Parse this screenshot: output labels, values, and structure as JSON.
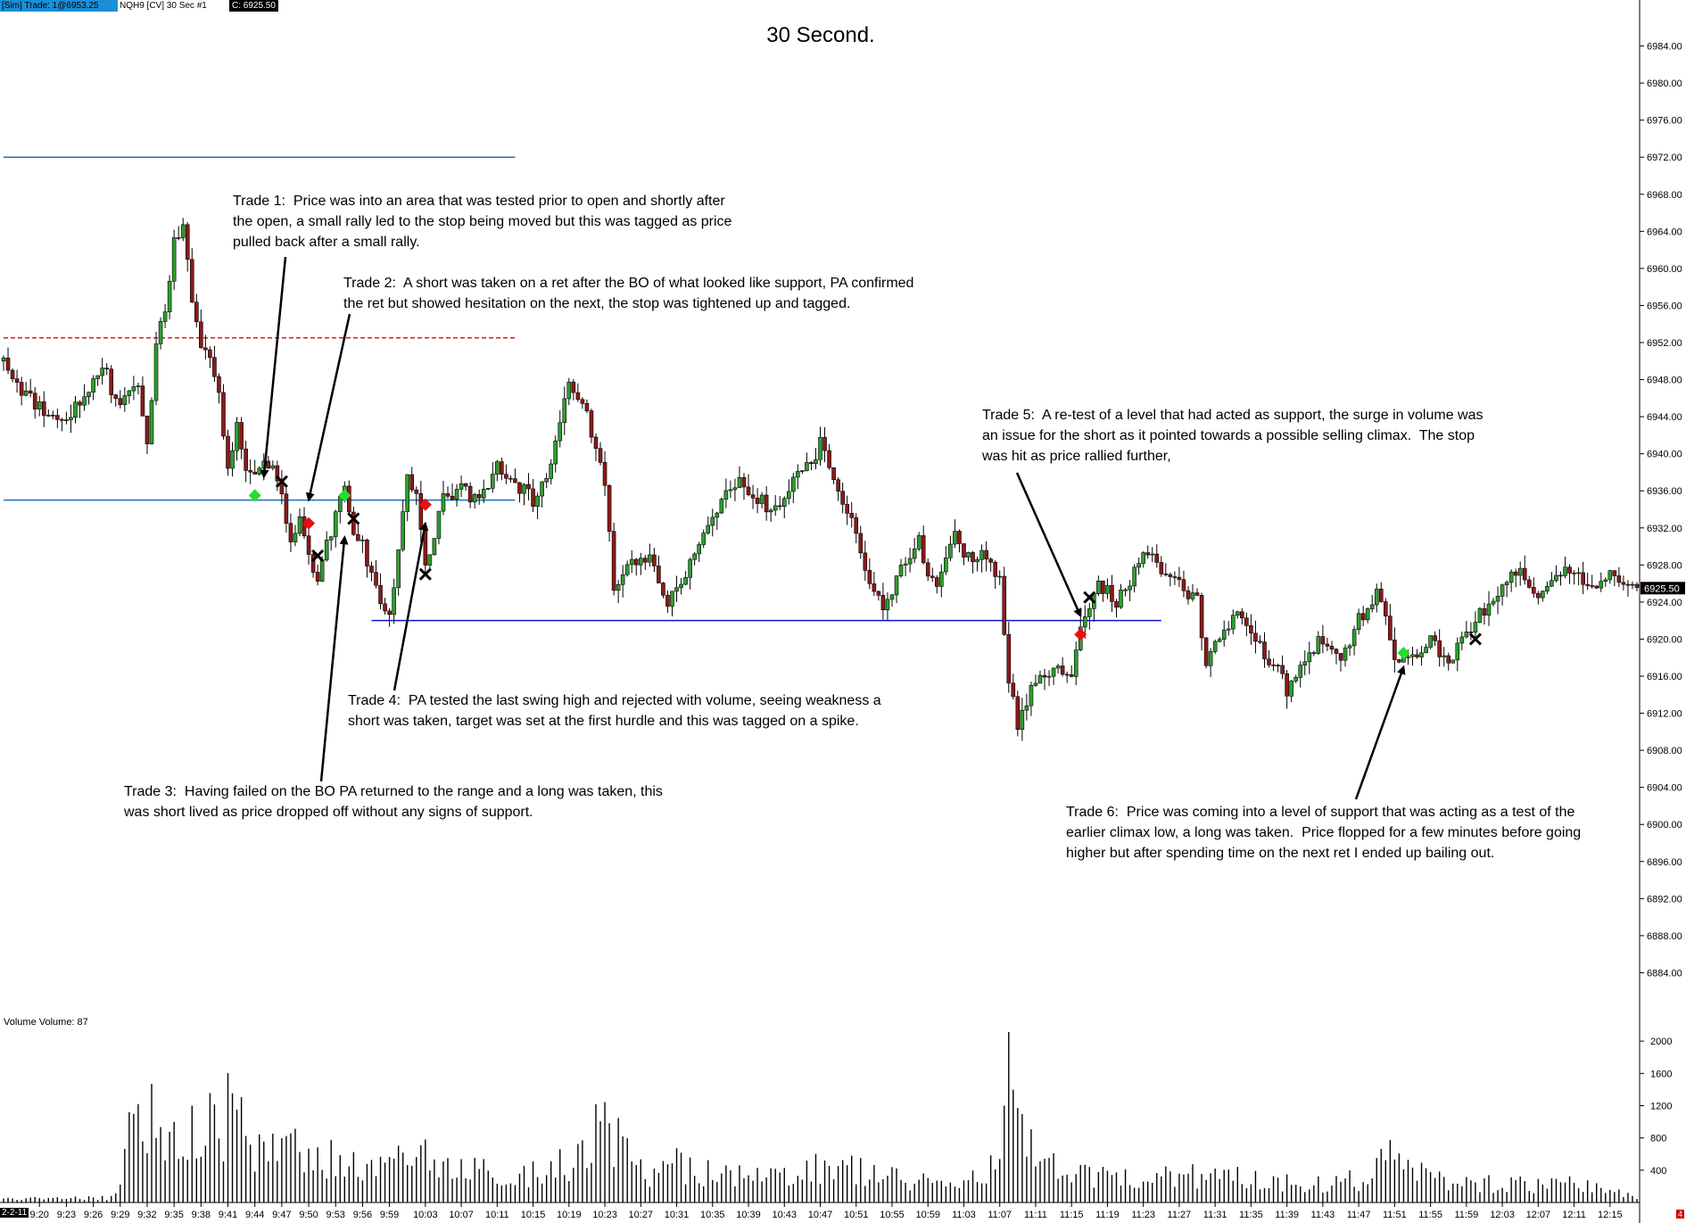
{
  "header": {
    "sim_trade": "[Sim]  Trade: 1@6953.25",
    "instrument": "NQH9 [CV]  30 Sec   #1",
    "last_price": "C: 6925.50"
  },
  "volume_label": "Volume  Volume: 87",
  "date_badge": "2-2-11",
  "corner_badge": "4",
  "colors": {
    "up_candle": "#2e9e2e",
    "down_candle": "#8b1a1a",
    "support_line": "#1a6fc4",
    "support_line_dark": "#1010d0",
    "dashed_level": "#d42020",
    "long_entry": "#22e02b",
    "short_entry": "#e81010",
    "exit_marker": "#000000"
  },
  "chart_data": [
    {
      "type": "candlestick",
      "title": "30 Second.",
      "ylim": [
        6880,
        6988
      ],
      "y_ticks": [
        "6984.00",
        "6980.00",
        "6976.00",
        "6972.00",
        "6968.00",
        "6964.00",
        "6960.00",
        "6956.00",
        "6952.00",
        "6948.00",
        "6944.00",
        "6940.00",
        "6936.00",
        "6932.00",
        "6928.00",
        "6924.00",
        "6920.00",
        "6916.00",
        "6912.00",
        "6908.00",
        "6904.00",
        "6900.00",
        "6896.00",
        "6892.00",
        "6888.00",
        "6884.00"
      ],
      "last_price_label": "6925.50",
      "x_ticks": [
        "9:20",
        "9:23",
        "9:26",
        "9:29",
        "9:32",
        "9:35",
        "9:38",
        "9:41",
        "9:44",
        "9:47",
        "9:50",
        "9:53",
        "9:56",
        "9:59",
        "10:03",
        "10:07",
        "10:11",
        "10:15",
        "10:19",
        "10:23",
        "10:27",
        "10:31",
        "10:35",
        "10:39",
        "10:43",
        "10:47",
        "10:51",
        "10:55",
        "10:59",
        "11:03",
        "11:07",
        "11:11",
        "11:15",
        "11:19",
        "11:23",
        "11:27",
        "11:31",
        "11:35",
        "11:39",
        "11:43",
        "11:47",
        "11:51",
        "11:55",
        "11:59",
        "12:03",
        "12:07",
        "12:11",
        "12:15"
      ],
      "price_path": [
        [
          "9:16",
          6950
        ],
        [
          "9:18",
          6947
        ],
        [
          "9:20",
          6945
        ],
        [
          "9:22",
          6943.5
        ],
        [
          "9:24",
          6945
        ],
        [
          "9:26",
          6948
        ],
        [
          "9:27",
          6950
        ],
        [
          "9:28",
          6947
        ],
        [
          "9:29",
          6945
        ],
        [
          "9:30",
          6946
        ],
        [
          "9:31",
          6948
        ],
        [
          "9:32",
          6941
        ],
        [
          "9:33",
          6952
        ],
        [
          "9:34",
          6955
        ],
        [
          "9:35",
          6963
        ],
        [
          "9:36",
          6964
        ],
        [
          "9:37",
          6957
        ],
        [
          "9:38",
          6952
        ],
        [
          "9:39",
          6950
        ],
        [
          "9:40",
          6947
        ],
        [
          "9:41",
          6938
        ],
        [
          "9:42",
          6943
        ],
        [
          "9:43",
          6938
        ],
        [
          "9:44",
          6937
        ],
        [
          "9:45",
          6940
        ],
        [
          "9:46",
          6938
        ],
        [
          "9:47",
          6935
        ],
        [
          "9:48",
          6930
        ],
        [
          "9:49",
          6933
        ],
        [
          "9:50",
          6929
        ],
        [
          "9:51",
          6926
        ],
        [
          "9:52",
          6930
        ],
        [
          "9:53",
          6933
        ],
        [
          "9:54",
          6937
        ],
        [
          "9:55",
          6932
        ],
        [
          "9:56",
          6930
        ],
        [
          "9:57",
          6927
        ],
        [
          "9:58",
          6924
        ],
        [
          "9:59",
          6922
        ],
        [
          "10:00",
          6930
        ],
        [
          "10:01",
          6937
        ],
        [
          "10:02",
          6936
        ],
        [
          "10:03",
          6928
        ],
        [
          "10:05",
          6935
        ],
        [
          "10:07",
          6936
        ],
        [
          "10:09",
          6935
        ],
        [
          "10:11",
          6939
        ],
        [
          "10:13",
          6937
        ],
        [
          "10:15",
          6935
        ],
        [
          "10:17",
          6939
        ],
        [
          "10:18",
          6944
        ],
        [
          "10:19",
          6947
        ],
        [
          "10:21",
          6944
        ],
        [
          "10:23",
          6937
        ],
        [
          "10:24",
          6925
        ],
        [
          "10:26",
          6928
        ],
        [
          "10:28",
          6929
        ],
        [
          "10:30",
          6924
        ],
        [
          "10:32",
          6927
        ],
        [
          "10:34",
          6932
        ],
        [
          "10:36",
          6935
        ],
        [
          "10:38",
          6937
        ],
        [
          "10:40",
          6935
        ],
        [
          "10:42",
          6934
        ],
        [
          "10:44",
          6937
        ],
        [
          "10:46",
          6939
        ],
        [
          "10:47",
          6941
        ],
        [
          "10:49",
          6936
        ],
        [
          "10:51",
          6932
        ],
        [
          "10:52",
          6928
        ],
        [
          "10:53",
          6925
        ],
        [
          "10:54",
          6923
        ],
        [
          "10:56",
          6928
        ],
        [
          "10:58",
          6931
        ],
        [
          "10:59",
          6927
        ],
        [
          "11:00",
          6925
        ],
        [
          "11:02",
          6932
        ],
        [
          "11:03",
          6929
        ],
        [
          "11:05",
          6929
        ],
        [
          "11:07",
          6926
        ],
        [
          "11:08",
          6915
        ],
        [
          "11:09",
          6911
        ],
        [
          "11:11",
          6916
        ],
        [
          "11:13",
          6917
        ],
        [
          "11:15",
          6916
        ],
        [
          "11:16",
          6921
        ],
        [
          "11:17",
          6924
        ],
        [
          "11:18",
          6926
        ],
        [
          "11:20",
          6924
        ],
        [
          "11:22",
          6927
        ],
        [
          "11:23",
          6930
        ],
        [
          "11:25",
          6927
        ],
        [
          "11:27",
          6926
        ],
        [
          "11:29",
          6924
        ],
        [
          "11:30",
          6917
        ],
        [
          "11:32",
          6921
        ],
        [
          "11:34",
          6923
        ],
        [
          "11:36",
          6919
        ],
        [
          "11:38",
          6917
        ],
        [
          "11:39",
          6914
        ],
        [
          "11:41",
          6918
        ],
        [
          "11:43",
          6920
        ],
        [
          "11:45",
          6918
        ],
        [
          "11:47",
          6922
        ],
        [
          "11:49",
          6925
        ],
        [
          "11:50",
          6923
        ],
        [
          "11:51",
          6917
        ],
        [
          "11:53",
          6918
        ],
        [
          "11:55",
          6920
        ],
        [
          "11:57",
          6917
        ],
        [
          "11:59",
          6921
        ],
        [
          "12:01",
          6923
        ],
        [
          "12:03",
          6926
        ],
        [
          "12:05",
          6927
        ],
        [
          "12:07",
          6925
        ],
        [
          "12:09",
          6927
        ],
        [
          "12:11",
          6927
        ],
        [
          "12:13",
          6926
        ],
        [
          "12:15",
          6927
        ],
        [
          "12:17",
          6926
        ],
        [
          "12:18",
          6925.5
        ]
      ],
      "levels": [
        {
          "price": 6972,
          "from": "9:16",
          "to": "10:13",
          "style": "solid",
          "color": "support_line"
        },
        {
          "price": 6952.5,
          "from": "9:16",
          "to": "10:13",
          "style": "dashed",
          "color": "dashed_level"
        },
        {
          "price": 6935,
          "from": "9:16",
          "to": "10:13",
          "style": "solid",
          "color": "support_line"
        },
        {
          "price": 6922,
          "from": "9:57",
          "to": "11:25",
          "style": "solid",
          "color": "support_line_dark"
        }
      ],
      "trade_markers": [
        {
          "time": "9:44",
          "price": 6935.5,
          "kind": "long_entry"
        },
        {
          "time": "9:47",
          "price": 6937,
          "kind": "exit"
        },
        {
          "time": "9:50",
          "price": 6932.5,
          "kind": "short_entry"
        },
        {
          "time": "9:51",
          "price": 6929,
          "kind": "exit"
        },
        {
          "time": "9:54",
          "price": 6935.5,
          "kind": "long_entry"
        },
        {
          "time": "9:55",
          "price": 6933,
          "kind": "exit"
        },
        {
          "time": "10:03",
          "price": 6934.5,
          "kind": "short_entry"
        },
        {
          "time": "10:03",
          "price": 6927,
          "kind": "exit"
        },
        {
          "time": "11:16",
          "price": 6920.5,
          "kind": "short_entry"
        },
        {
          "time": "11:17",
          "price": 6924.5,
          "kind": "exit"
        },
        {
          "time": "11:52",
          "price": 6918.5,
          "kind": "long_entry"
        },
        {
          "time": "12:00",
          "price": 6920,
          "kind": "exit"
        }
      ],
      "annotations": [
        {
          "text": "Trade 1:  Price was into an area that was tested prior to open and shortly after\nthe open, a small rally led to the stop being moved but this was tagged as price\npulled back after a small rally.",
          "arrow_to": [
            "9:45",
            6937.5
          ]
        },
        {
          "text": "Trade 2:  A short was taken on a ret after the BO of what looked like support, PA confirmed\nthe ret but showed hesitation on the next, the stop was tightened up and tagged.",
          "arrow_to": [
            "9:50",
            6935
          ]
        },
        {
          "text": "Trade 3:  Having failed on the BO PA returned to the range and a long was taken, this\nwas short lived as price dropped off without any signs of support.",
          "arrow_to": [
            "9:54",
            6931
          ]
        },
        {
          "text": "Trade 4:  PA tested the last swing high and rejected with volume, seeing weakness a\nshort was taken, target was set at the first hurdle and this was tagged on a spike.",
          "arrow_to": [
            "10:03",
            6932.5
          ]
        },
        {
          "text": "Trade 5:  A re-test of a level that had acted as support, the surge in volume was\nan issue for the short as it pointed towards a possible selling climax.  The stop\nwas hit as price rallied further,",
          "arrow_to": [
            "11:16",
            6922.5
          ]
        },
        {
          "text": "Trade 6:  Price was coming into a level of support that was acting as a test of the\nearlier climax low, a long was taken.  Price flopped for a few minutes before going\nhigher but after spending time on the next ret I ended up bailing out.",
          "arrow_to": [
            "11:52",
            6917
          ]
        }
      ]
    },
    {
      "type": "bar",
      "title": "Volume",
      "ylim": [
        0,
        2300
      ],
      "y_ticks": [
        "2000",
        "1600",
        "1200",
        "800",
        "400"
      ],
      "current_volume": 87,
      "volume_profile": [
        [
          "9:16",
          60
        ],
        [
          "9:28",
          80
        ],
        [
          "9:29",
          300
        ],
        [
          "9:30",
          1200
        ],
        [
          "9:31",
          2100
        ],
        [
          "9:32",
          1300
        ],
        [
          "9:33",
          1600
        ],
        [
          "9:35",
          1100
        ],
        [
          "9:38",
          1200
        ],
        [
          "9:41",
          1500
        ],
        [
          "9:44",
          1000
        ],
        [
          "9:47",
          900
        ],
        [
          "9:50",
          800
        ],
        [
          "9:53",
          700
        ],
        [
          "9:56",
          700
        ],
        [
          "9:59",
          600
        ],
        [
          "10:03",
          800
        ],
        [
          "10:07",
          500
        ],
        [
          "10:11",
          550
        ],
        [
          "10:15",
          500
        ],
        [
          "10:19",
          700
        ],
        [
          "10:23",
          1300
        ],
        [
          "10:27",
          500
        ],
        [
          "10:31",
          650
        ],
        [
          "10:35",
          500
        ],
        [
          "10:39",
          400
        ],
        [
          "10:43",
          450
        ],
        [
          "10:47",
          600
        ],
        [
          "10:51",
          550
        ],
        [
          "10:55",
          400
        ],
        [
          "10:59",
          350
        ],
        [
          "11:03",
          350
        ],
        [
          "11:07",
          700
        ],
        [
          "11:08",
          2100
        ],
        [
          "11:09",
          1300
        ],
        [
          "11:11",
          700
        ],
        [
          "11:15",
          450
        ],
        [
          "11:19",
          400
        ],
        [
          "11:23",
          400
        ],
        [
          "11:27",
          500
        ],
        [
          "11:31",
          450
        ],
        [
          "11:35",
          400
        ],
        [
          "11:39",
          350
        ],
        [
          "11:43",
          350
        ],
        [
          "11:47",
          400
        ],
        [
          "11:51",
          800
        ],
        [
          "11:55",
          400
        ],
        [
          "11:59",
          350
        ],
        [
          "12:03",
          300
        ],
        [
          "12:07",
          300
        ],
        [
          "12:11",
          300
        ],
        [
          "12:15",
          200
        ],
        [
          "12:18",
          90
        ]
      ]
    }
  ]
}
